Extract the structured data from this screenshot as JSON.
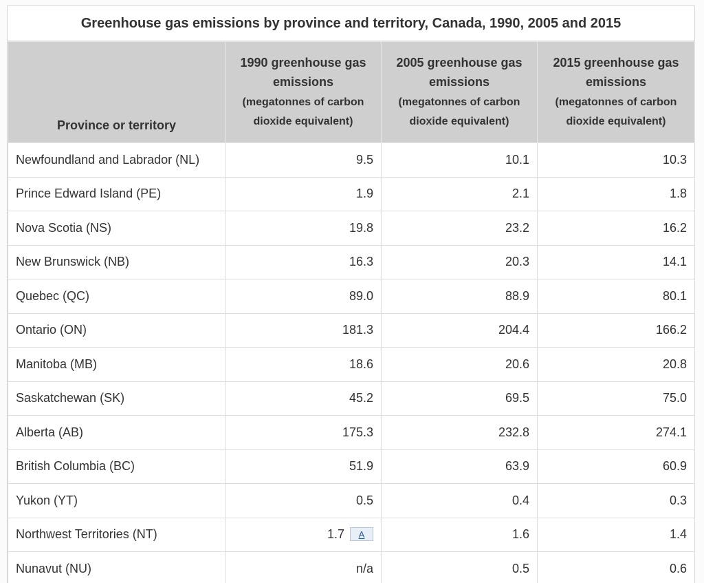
{
  "table": {
    "caption": "Greenhouse gas emissions by province and territory, Canada, 1990, 2005 and 2015",
    "columns": [
      {
        "label": "Province or territory",
        "unit": ""
      },
      {
        "label": "1990 greenhouse gas emissions",
        "unit": "(megatonnes of carbon dioxide equivalent)"
      },
      {
        "label": "2005 greenhouse gas emissions",
        "unit": "(megatonnes of carbon dioxide equivalent)"
      },
      {
        "label": "2015 greenhouse gas emissions",
        "unit": "(megatonnes of carbon dioxide equivalent)"
      }
    ],
    "rows": [
      {
        "name": "Newfoundland and Labrador (NL)",
        "v1990": "9.5",
        "v2005": "10.1",
        "v2015": "10.3"
      },
      {
        "name": "Prince Edward Island (PE)",
        "v1990": "1.9",
        "v2005": "2.1",
        "v2015": "1.8"
      },
      {
        "name": "Nova Scotia (NS)",
        "v1990": "19.8",
        "v2005": "23.2",
        "v2015": "16.2"
      },
      {
        "name": "New Brunswick (NB)",
        "v1990": "16.3",
        "v2005": "20.3",
        "v2015": "14.1"
      },
      {
        "name": "Quebec (QC)",
        "v1990": "89.0",
        "v2005": "88.9",
        "v2015": "80.1"
      },
      {
        "name": "Ontario (ON)",
        "v1990": "181.3",
        "v2005": "204.4",
        "v2015": "166.2"
      },
      {
        "name": "Manitoba (MB)",
        "v1990": "18.6",
        "v2005": "20.6",
        "v2015": "20.8"
      },
      {
        "name": "Saskatchewan (SK)",
        "v1990": "45.2",
        "v2005": "69.5",
        "v2015": "75.0"
      },
      {
        "name": "Alberta (AB)",
        "v1990": "175.3",
        "v2005": "232.8",
        "v2015": "274.1"
      },
      {
        "name": "British Columbia (BC)",
        "v1990": "51.9",
        "v2005": "63.9",
        "v2015": "60.9"
      },
      {
        "name": "Yukon (YT)",
        "v1990": "0.5",
        "v2005": "0.4",
        "v2015": "0.3"
      },
      {
        "name": "Northwest Territories (NT)",
        "v1990": "1.7",
        "note": "A",
        "v2005": "1.6",
        "v2015": "1.4"
      },
      {
        "name": "Nunavut (NU)",
        "v1990": "n/a",
        "v2005": "0.5",
        "v2015": "0.6"
      }
    ]
  }
}
